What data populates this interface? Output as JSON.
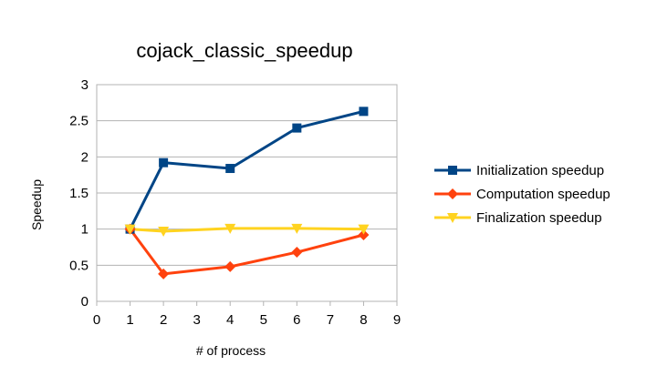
{
  "chart_data": {
    "type": "line",
    "title": "cojack_classic_speedup",
    "xlabel": "# of process",
    "ylabel": "Speedup",
    "xlim": [
      0,
      9
    ],
    "ylim": [
      0,
      3
    ],
    "xticks": [
      "0",
      "1",
      "2",
      "3",
      "4",
      "5",
      "6",
      "7",
      "8",
      "9"
    ],
    "yticks": [
      "0",
      "0.5",
      "1",
      "1.5",
      "2",
      "2.5",
      "3"
    ],
    "grid": "horizontal",
    "legend": "right",
    "x": [
      1,
      2,
      4,
      6,
      8
    ],
    "series": [
      {
        "name": "Initialization speedup",
        "color": "#004586",
        "marker": "square",
        "values": [
          1.0,
          1.92,
          1.84,
          2.4,
          2.63
        ]
      },
      {
        "name": "Computation speedup",
        "color": "#ff420e",
        "marker": "diamond",
        "values": [
          1.0,
          0.38,
          0.48,
          0.68,
          0.92
        ]
      },
      {
        "name": "Finalization speedup",
        "color": "#ffd320",
        "marker": "triangle-down",
        "values": [
          1.0,
          0.97,
          1.01,
          1.01,
          1.0
        ]
      }
    ]
  }
}
